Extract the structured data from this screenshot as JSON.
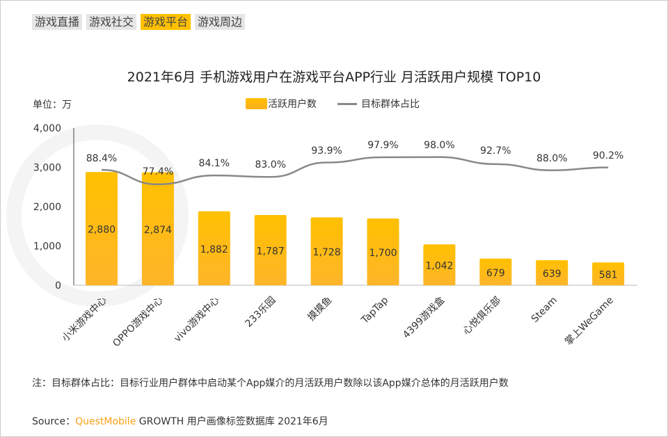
{
  "tabs": [
    "游戏直播",
    "游戏社交",
    "游戏平台",
    "游戏周边"
  ],
  "active_tab": 2,
  "unit": "单位：万",
  "note": "注：目标群体占比：目标行业用户群体中启动某个App媒介的月活跃用户数除以该App媒介总体的月活跃用户数",
  "source_prefix": "Source：",
  "source_brand": "QuestMobile",
  "source_rest": " GROWTH 用户画像标签数据库 2021年6月",
  "watermark": "QUEST MOBILE",
  "chart_data": {
    "type": "bar",
    "title": "2021年6月 手机游戏用户在游戏平台APP行业 月活跃用户规模 TOP10",
    "categories": [
      "小米游戏中心",
      "OPPO游戏中心",
      "vivo游戏中心",
      "233乐园",
      "摸摸鱼",
      "TapTap",
      "4399游戏盒",
      "心悦俱乐部",
      "Steam",
      "掌上WeGame"
    ],
    "series": [
      {
        "name": "活跃用户数",
        "type": "bar",
        "values": [
          2880,
          2874,
          1882,
          1787,
          1728,
          1700,
          1042,
          679,
          639,
          581
        ],
        "labels": [
          "2,880",
          "2,874",
          "1,882",
          "1,787",
          "1,728",
          "1,700",
          "1,042",
          "679",
          "639",
          "581"
        ],
        "color": "#ffc000"
      },
      {
        "name": "目标群体占比",
        "type": "line",
        "values": [
          88.4,
          77.4,
          84.1,
          83.0,
          93.9,
          97.9,
          98.0,
          92.7,
          88.0,
          90.2
        ],
        "labels": [
          "88.4%",
          "77.4%",
          "84.1%",
          "83.0%",
          "93.9%",
          "97.9%",
          "98.0%",
          "92.7%",
          "88.0%",
          "90.2%"
        ],
        "color": "#888888"
      }
    ],
    "ylim": [
      0,
      4000
    ],
    "yticks": [
      "0",
      "1,000",
      "2,000",
      "3,000",
      "4,000"
    ],
    "grid": false,
    "legend": "top"
  }
}
